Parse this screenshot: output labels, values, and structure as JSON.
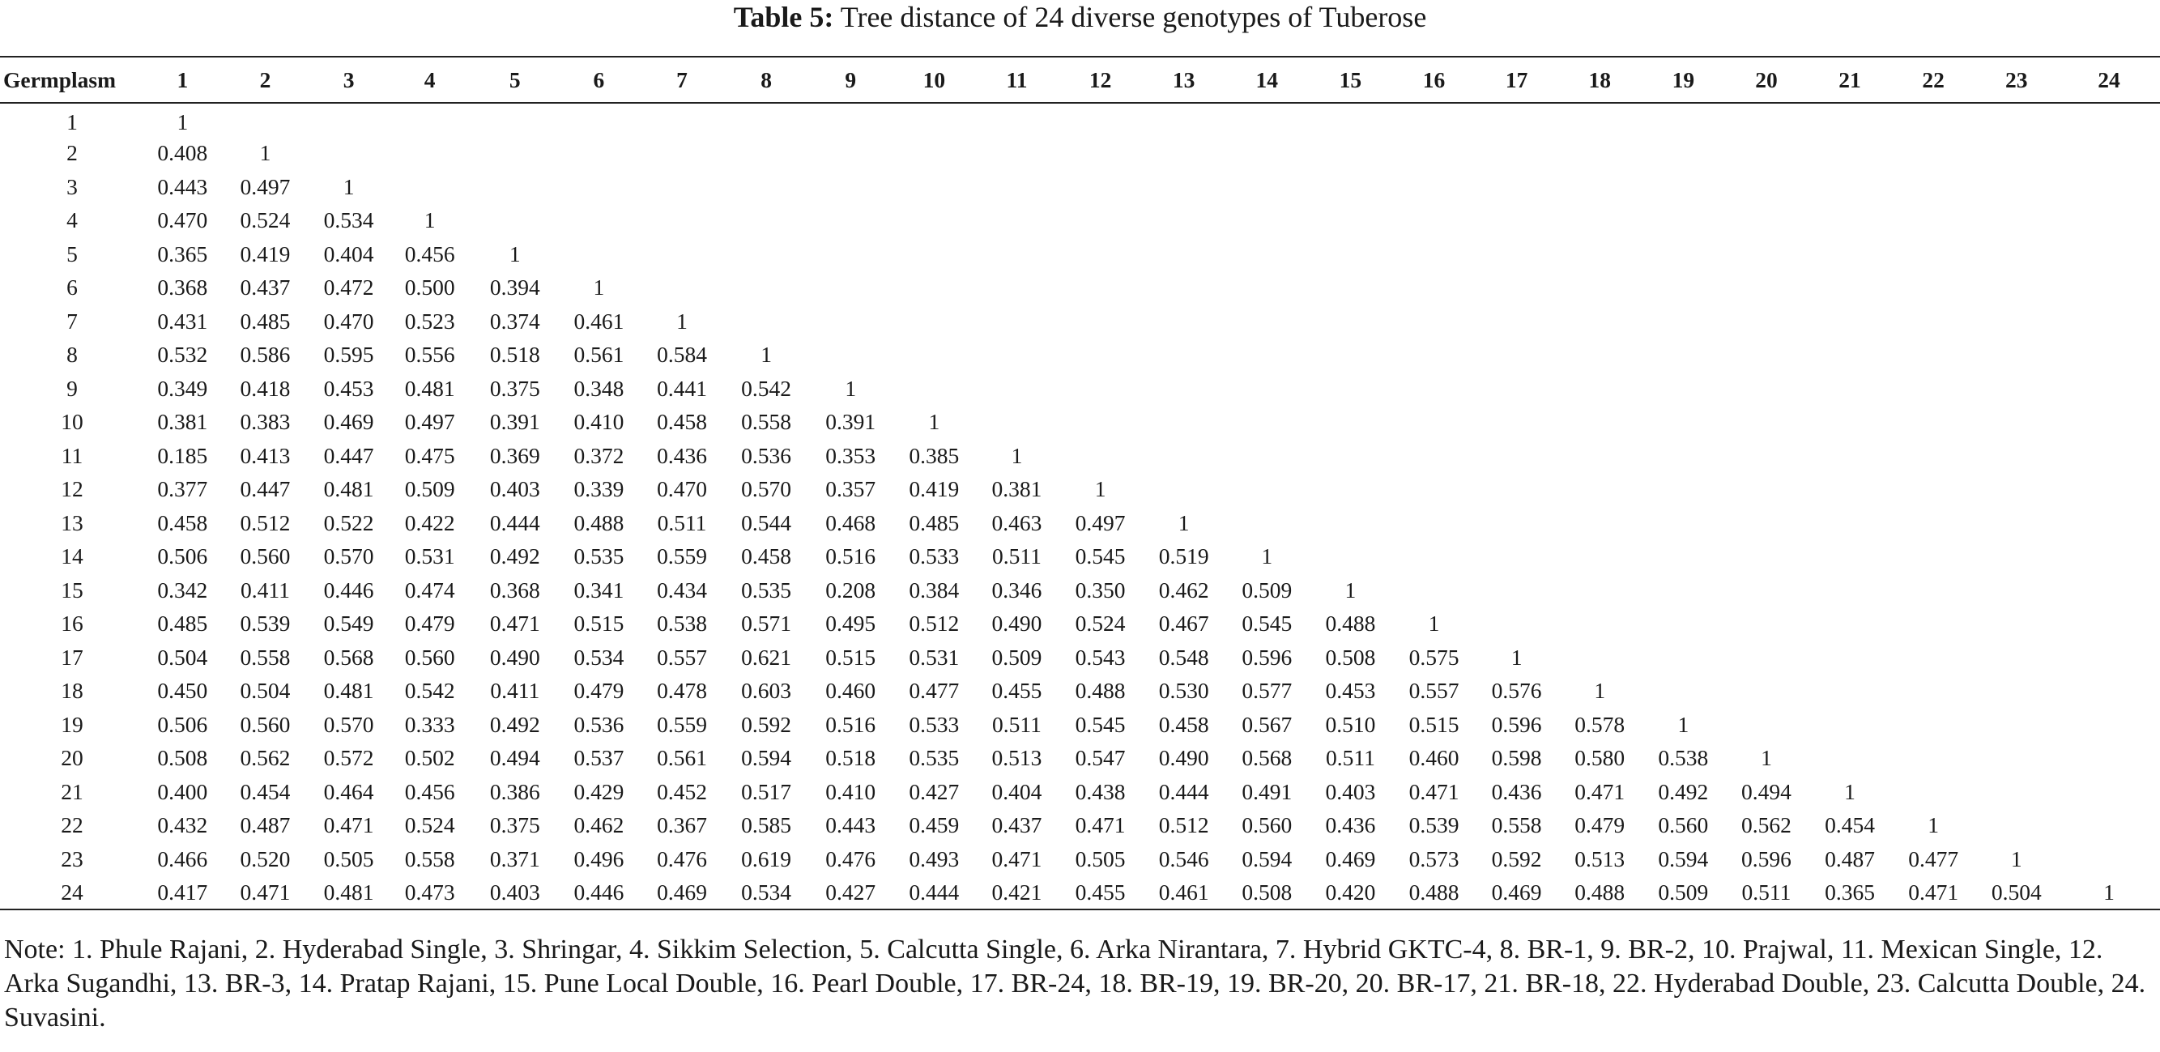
{
  "caption": {
    "label": "Table 5:",
    "text": " Tree distance of 24 diverse genotypes of Tuberose"
  },
  "table": {
    "corner_header": "Germplasm",
    "column_headers": [
      "1",
      "2",
      "3",
      "4",
      "5",
      "6",
      "7",
      "8",
      "9",
      "10",
      "11",
      "12",
      "13",
      "14",
      "15",
      "16",
      "17",
      "18",
      "19",
      "20",
      "21",
      "22",
      "23",
      "24"
    ],
    "rows": [
      {
        "label": "1",
        "values": [
          "1"
        ]
      },
      {
        "label": "2",
        "values": [
          "0.408",
          "1"
        ]
      },
      {
        "label": "3",
        "values": [
          "0.443",
          "0.497",
          "1"
        ]
      },
      {
        "label": "4",
        "values": [
          "0.470",
          "0.524",
          "0.534",
          "1"
        ]
      },
      {
        "label": "5",
        "values": [
          "0.365",
          "0.419",
          "0.404",
          "0.456",
          "1"
        ]
      },
      {
        "label": "6",
        "values": [
          "0.368",
          "0.437",
          "0.472",
          "0.500",
          "0.394",
          "1"
        ]
      },
      {
        "label": "7",
        "values": [
          "0.431",
          "0.485",
          "0.470",
          "0.523",
          "0.374",
          "0.461",
          "1"
        ]
      },
      {
        "label": "8",
        "values": [
          "0.532",
          "0.586",
          "0.595",
          "0.556",
          "0.518",
          "0.561",
          "0.584",
          "1"
        ]
      },
      {
        "label": "9",
        "values": [
          "0.349",
          "0.418",
          "0.453",
          "0.481",
          "0.375",
          "0.348",
          "0.441",
          "0.542",
          "1"
        ]
      },
      {
        "label": "10",
        "values": [
          "0.381",
          "0.383",
          "0.469",
          "0.497",
          "0.391",
          "0.410",
          "0.458",
          "0.558",
          "0.391",
          "1"
        ]
      },
      {
        "label": "11",
        "values": [
          "0.185",
          "0.413",
          "0.447",
          "0.475",
          "0.369",
          "0.372",
          "0.436",
          "0.536",
          "0.353",
          "0.385",
          "1"
        ]
      },
      {
        "label": "12",
        "values": [
          "0.377",
          "0.447",
          "0.481",
          "0.509",
          "0.403",
          "0.339",
          "0.470",
          "0.570",
          "0.357",
          "0.419",
          "0.381",
          "1"
        ]
      },
      {
        "label": "13",
        "values": [
          "0.458",
          "0.512",
          "0.522",
          "0.422",
          "0.444",
          "0.488",
          "0.511",
          "0.544",
          "0.468",
          "0.485",
          "0.463",
          "0.497",
          "1"
        ]
      },
      {
        "label": "14",
        "values": [
          "0.506",
          "0.560",
          "0.570",
          "0.531",
          "0.492",
          "0.535",
          "0.559",
          "0.458",
          "0.516",
          "0.533",
          "0.511",
          "0.545",
          "0.519",
          "1"
        ]
      },
      {
        "label": "15",
        "values": [
          "0.342",
          "0.411",
          "0.446",
          "0.474",
          "0.368",
          "0.341",
          "0.434",
          "0.535",
          "0.208",
          "0.384",
          "0.346",
          "0.350",
          "0.462",
          "0.509",
          "1"
        ]
      },
      {
        "label": "16",
        "values": [
          "0.485",
          "0.539",
          "0.549",
          "0.479",
          "0.471",
          "0.515",
          "0.538",
          "0.571",
          "0.495",
          "0.512",
          "0.490",
          "0.524",
          "0.467",
          "0.545",
          "0.488",
          "1"
        ]
      },
      {
        "label": "17",
        "values": [
          "0.504",
          "0.558",
          "0.568",
          "0.560",
          "0.490",
          "0.534",
          "0.557",
          "0.621",
          "0.515",
          "0.531",
          "0.509",
          "0.543",
          "0.548",
          "0.596",
          "0.508",
          "0.575",
          "1"
        ]
      },
      {
        "label": "18",
        "values": [
          "0.450",
          "0.504",
          "0.481",
          "0.542",
          "0.411",
          "0.479",
          "0.478",
          "0.603",
          "0.460",
          "0.477",
          "0.455",
          "0.488",
          "0.530",
          "0.577",
          "0.453",
          "0.557",
          "0.576",
          "1"
        ]
      },
      {
        "label": "19",
        "values": [
          "0.506",
          "0.560",
          "0.570",
          "0.333",
          "0.492",
          "0.536",
          "0.559",
          "0.592",
          "0.516",
          "0.533",
          "0.511",
          "0.545",
          "0.458",
          "0.567",
          "0.510",
          "0.515",
          "0.596",
          "0.578",
          "1"
        ]
      },
      {
        "label": "20",
        "values": [
          "0.508",
          "0.562",
          "0.572",
          "0.502",
          "0.494",
          "0.537",
          "0.561",
          "0.594",
          "0.518",
          "0.535",
          "0.513",
          "0.547",
          "0.490",
          "0.568",
          "0.511",
          "0.460",
          "0.598",
          "0.580",
          "0.538",
          "1"
        ]
      },
      {
        "label": "21",
        "values": [
          "0.400",
          "0.454",
          "0.464",
          "0.456",
          "0.386",
          "0.429",
          "0.452",
          "0.517",
          "0.410",
          "0.427",
          "0.404",
          "0.438",
          "0.444",
          "0.491",
          "0.403",
          "0.471",
          "0.436",
          "0.471",
          "0.492",
          "0.494",
          "1"
        ]
      },
      {
        "label": "22",
        "values": [
          "0.432",
          "0.487",
          "0.471",
          "0.524",
          "0.375",
          "0.462",
          "0.367",
          "0.585",
          "0.443",
          "0.459",
          "0.437",
          "0.471",
          "0.512",
          "0.560",
          "0.436",
          "0.539",
          "0.558",
          "0.479",
          "0.560",
          "0.562",
          "0.454",
          "1"
        ]
      },
      {
        "label": "23",
        "values": [
          "0.466",
          "0.520",
          "0.505",
          "0.558",
          "0.371",
          "0.496",
          "0.476",
          "0.619",
          "0.476",
          "0.493",
          "0.471",
          "0.505",
          "0.546",
          "0.594",
          "0.469",
          "0.573",
          "0.592",
          "0.513",
          "0.594",
          "0.596",
          "0.487",
          "0.477",
          "1"
        ]
      },
      {
        "label": "24",
        "values": [
          "0.417",
          "0.471",
          "0.481",
          "0.473",
          "0.403",
          "0.446",
          "0.469",
          "0.534",
          "0.427",
          "0.444",
          "0.421",
          "0.455",
          "0.461",
          "0.508",
          "0.420",
          "0.488",
          "0.469",
          "0.488",
          "0.509",
          "0.511",
          "0.365",
          "0.471",
          "0.504",
          "1"
        ]
      }
    ]
  },
  "note": "Note: 1. Phule Rajani, 2. Hyderabad Single, 3. Shringar, 4. Sikkim Selection, 5. Calcutta Single, 6. Arka Nirantara, 7. Hybrid GKTC-4, 8. BR-1, 9. BR-2, 10. Prajwal, 11. Mexican Single, 12. Arka Sugandhi, 13. BR-3, 14. Pratap Rajani, 15. Pune Local Double, 16. Pearl Double, 17. BR-24, 18. BR-19, 19. BR-20, 20. BR-17, 21. BR-18, 22. Hyderabad Double, 23. Calcutta Double, 24. Suvasini."
}
